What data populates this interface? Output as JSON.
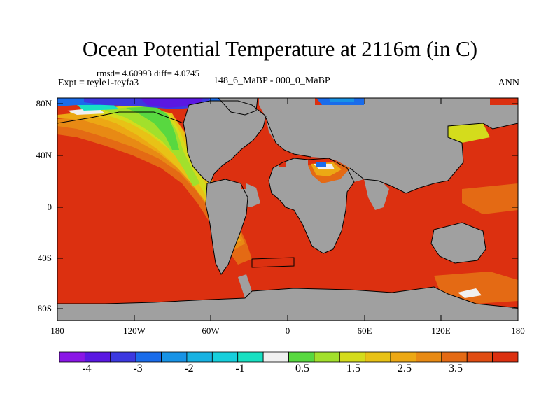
{
  "title": "Ocean Potential Temperature at 2116m (in C)",
  "stats_text": "rmsd= 4.60993 diff= 4.0745",
  "experiment": "Expt = teyle1-teyfa3",
  "comparison": "148_6_MaBP - 000_0_MaBP",
  "season": "ANN",
  "lat_ticks": [
    "80N",
    "40N",
    "0",
    "40S",
    "80S"
  ],
  "lon_ticks": [
    "180",
    "120W",
    "60W",
    "0",
    "60E",
    "120E",
    "180"
  ],
  "colorbar": {
    "colors": [
      "#8a16e6",
      "#5a18e2",
      "#3c38e0",
      "#1a6cea",
      "#1893e6",
      "#18b2e2",
      "#16cfdc",
      "#18e0c2",
      "#f0f0f0",
      "#58d840",
      "#a2e02c",
      "#d4dc1c",
      "#e8c216",
      "#eca814",
      "#e88a14",
      "#e46a14",
      "#e04c12",
      "#dc3010"
    ],
    "labels": [
      "-4",
      "-3",
      "-2",
      "-1",
      "0.5",
      "1.5",
      "2.5",
      "3.5"
    ]
  },
  "map_colors": {
    "land": "#a0a0a0",
    "ocean_base": "#dc3010",
    "coast": "#000000"
  }
}
